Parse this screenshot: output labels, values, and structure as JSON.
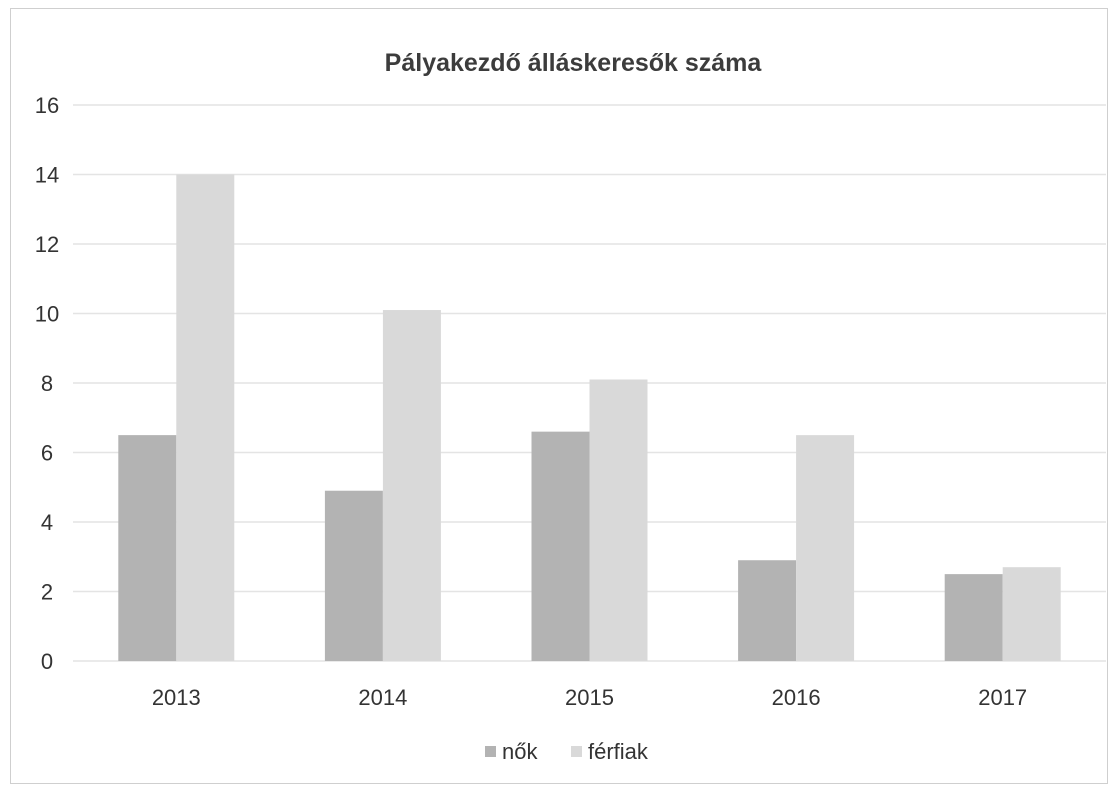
{
  "chart_data": {
    "type": "bar",
    "title": "Pályakezdő álláskeresők száma",
    "categories": [
      "2013",
      "2014",
      "2015",
      "2016",
      "2017"
    ],
    "series": [
      {
        "name": "nők",
        "values": [
          6.5,
          4.9,
          6.6,
          2.9,
          2.5
        ],
        "color": "#b3b3b3"
      },
      {
        "name": "férfiak",
        "values": [
          14.0,
          10.1,
          8.1,
          6.5,
          2.7
        ],
        "color": "#d9d9d9"
      }
    ],
    "ylim": [
      0,
      16
    ],
    "yticks": [
      "0",
      "2",
      "4",
      "6",
      "8",
      "10",
      "12",
      "14",
      "16"
    ],
    "xlabel": "",
    "ylabel": "",
    "grid": true,
    "legend": "bottom"
  }
}
